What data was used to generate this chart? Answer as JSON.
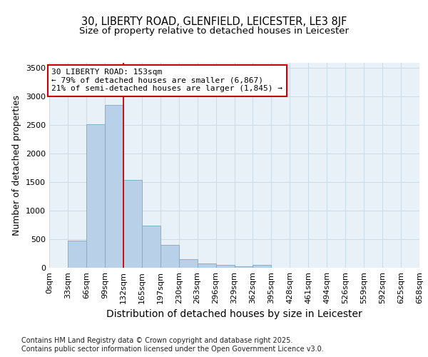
{
  "title_line1": "30, LIBERTY ROAD, GLENFIELD, LEICESTER, LE3 8JF",
  "title_line2": "Size of property relative to detached houses in Leicester",
  "xlabel": "Distribution of detached houses by size in Leicester",
  "ylabel": "Number of detached properties",
  "bar_values": [
    0,
    480,
    2520,
    2850,
    1540,
    740,
    400,
    155,
    75,
    55,
    30,
    50,
    0,
    0,
    0,
    0,
    0,
    0,
    0,
    0
  ],
  "categories": [
    "0sqm",
    "33sqm",
    "66sqm",
    "99sqm",
    "132sqm",
    "165sqm",
    "197sqm",
    "230sqm",
    "263sqm",
    "296sqm",
    "329sqm",
    "362sqm",
    "395sqm",
    "428sqm",
    "461sqm",
    "494sqm",
    "526sqm",
    "559sqm",
    "592sqm",
    "625sqm",
    "658sqm"
  ],
  "bar_color": "#b8d0e8",
  "bar_edge_color": "#7aaac8",
  "grid_color": "#c8dcea",
  "background_color": "#e8f0f8",
  "vline_color": "#cc0000",
  "annotation_text": "30 LIBERTY ROAD: 153sqm\n← 79% of detached houses are smaller (6,867)\n21% of semi-detached houses are larger (1,845) →",
  "annotation_edge_color": "#cc0000",
  "ylim": [
    0,
    3600
  ],
  "yticks": [
    0,
    500,
    1000,
    1500,
    2000,
    2500,
    3000,
    3500
  ],
  "footer_text": "Contains HM Land Registry data © Crown copyright and database right 2025.\nContains public sector information licensed under the Open Government Licence v3.0.",
  "title_fontsize": 10.5,
  "subtitle_fontsize": 9.5,
  "ylabel_fontsize": 9,
  "xlabel_fontsize": 10,
  "tick_fontsize": 8,
  "annotation_fontsize": 8,
  "footer_fontsize": 7
}
